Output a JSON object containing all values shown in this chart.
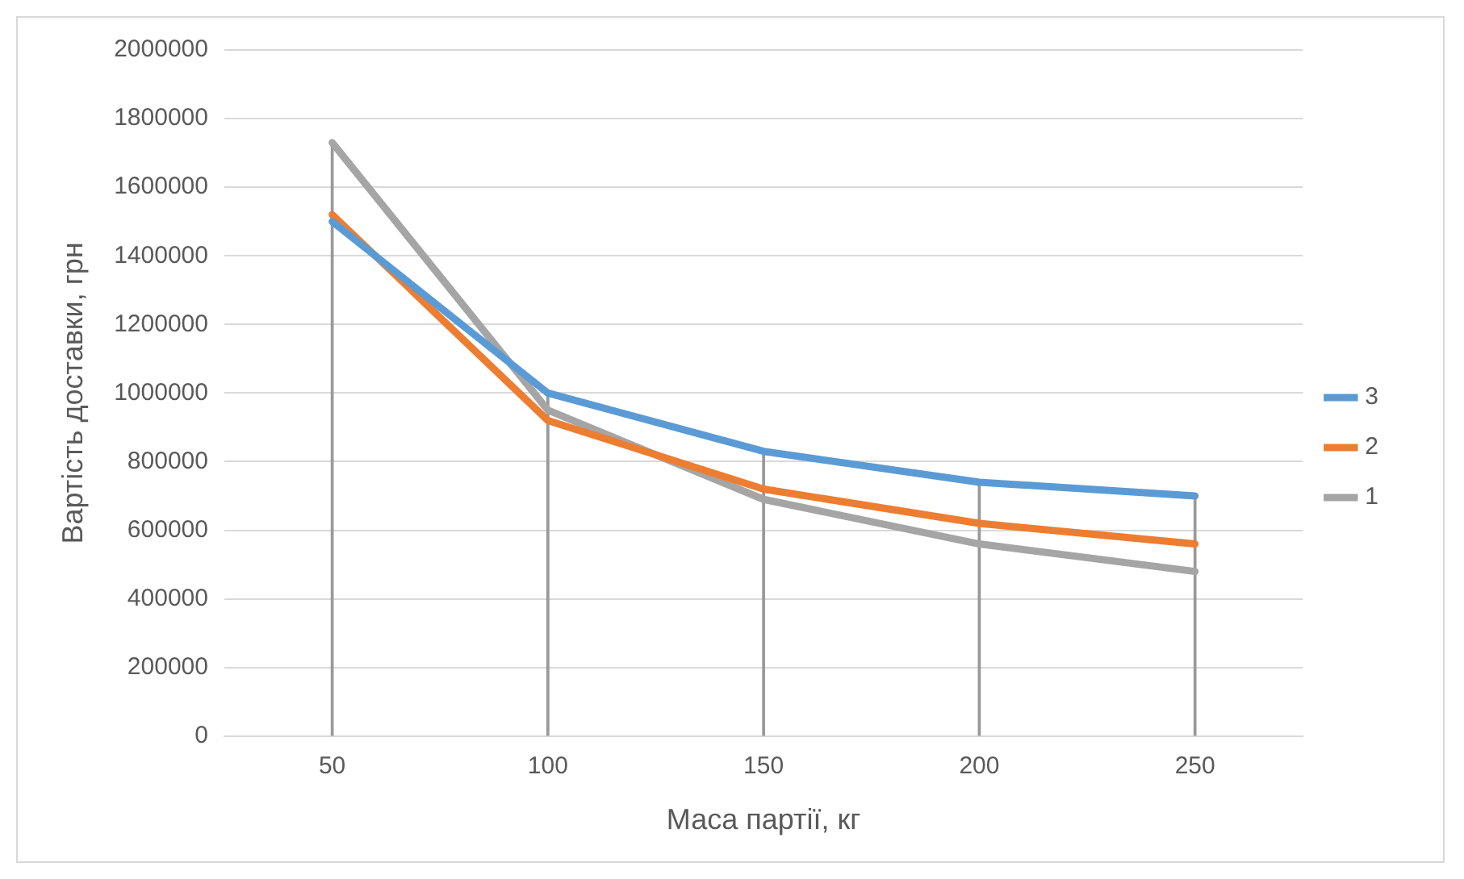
{
  "chart_data": {
    "type": "line",
    "xlabel": "Маса партії, кг",
    "ylabel": "Вартість доставки, грн",
    "categories": [
      "50",
      "100",
      "150",
      "200",
      "250"
    ],
    "series": [
      {
        "type": "bar",
        "color": "#999999",
        "values": [
          1730000,
          1000000,
          830000,
          740000,
          700000
        ]
      },
      {
        "name": "3",
        "color": "#5b9bd5",
        "values": [
          1500000,
          1000000,
          830000,
          740000,
          700000
        ]
      },
      {
        "name": "2",
        "color": "#ed7d31",
        "values": [
          1520000,
          920000,
          720000,
          620000,
          560000
        ]
      },
      {
        "name": "1",
        "color": "#a5a5a5",
        "values": [
          1730000,
          950000,
          690000,
          560000,
          480000
        ]
      }
    ],
    "ylim": [
      0,
      2000000
    ],
    "yticks": [
      0,
      200000,
      400000,
      600000,
      800000,
      1000000,
      1200000,
      1400000,
      1600000,
      1800000,
      2000000
    ],
    "grid": "y",
    "legend": "right",
    "marker": "none",
    "line_style": "solid"
  }
}
